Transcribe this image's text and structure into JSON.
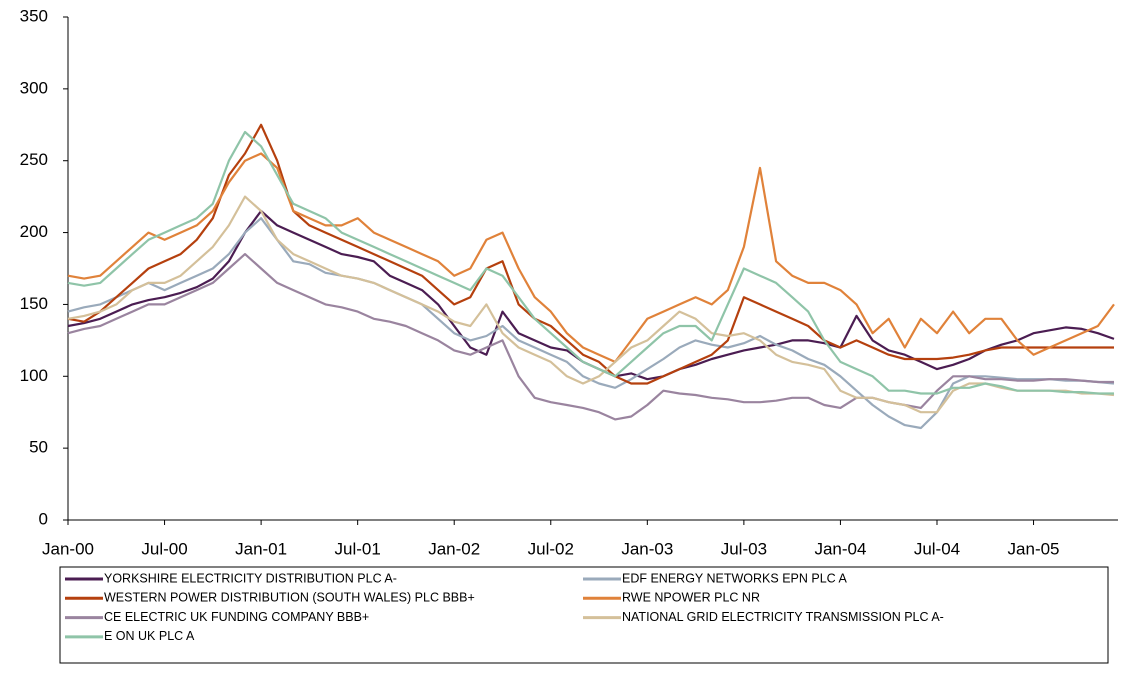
{
  "chart_data": {
    "type": "line",
    "categories": [
      "Jan-00",
      null,
      null,
      null,
      null,
      null,
      "Jul-00",
      null,
      null,
      null,
      null,
      null,
      "Jan-01",
      null,
      null,
      null,
      null,
      null,
      "Jul-01",
      null,
      null,
      null,
      null,
      null,
      "Jan-02",
      null,
      null,
      null,
      null,
      null,
      "Jul-02",
      null,
      null,
      null,
      null,
      null,
      "Jan-03",
      null,
      null,
      null,
      null,
      null,
      "Jul-03",
      null,
      null,
      null,
      null,
      null,
      "Jan-04",
      null,
      null,
      null,
      null,
      null,
      "Jul-04",
      null,
      null,
      null,
      null,
      null,
      "Jan-05",
      null,
      null,
      null,
      null,
      null
    ],
    "ylim": [
      0,
      350
    ],
    "yticks": [
      0,
      50,
      100,
      150,
      200,
      250,
      300,
      350
    ],
    "grid": false,
    "legend": "bottom",
    "series": [
      {
        "name": "YORKSHIRE ELECTRICITY  DISTRIBUTION PLC A-",
        "color": "#4b1d52",
        "values": [
          135,
          137,
          140,
          145,
          150,
          153,
          155,
          158,
          162,
          168,
          180,
          200,
          215,
          205,
          200,
          195,
          190,
          185,
          183,
          180,
          170,
          165,
          160,
          150,
          135,
          120,
          115,
          145,
          130,
          125,
          120,
          118,
          110,
          105,
          100,
          102,
          98,
          100,
          105,
          108,
          112,
          115,
          118,
          120,
          122,
          125,
          125,
          123,
          120,
          142,
          125,
          118,
          115,
          110,
          105,
          108,
          112,
          118,
          122,
          125,
          130,
          132,
          134,
          133,
          130,
          126
        ]
      },
      {
        "name": "EDF ENERGY NETWORKS  EPN PLC A",
        "color": "#9aaabb",
        "values": [
          145,
          148,
          150,
          155,
          160,
          165,
          160,
          165,
          170,
          175,
          185,
          200,
          210,
          195,
          180,
          178,
          172,
          170,
          168,
          165,
          160,
          155,
          150,
          140,
          130,
          125,
          128,
          135,
          125,
          120,
          115,
          110,
          100,
          95,
          92,
          98,
          105,
          112,
          120,
          125,
          122,
          120,
          123,
          128,
          122,
          118,
          112,
          108,
          100,
          90,
          80,
          72,
          66,
          64,
          75,
          95,
          100,
          100,
          99,
          98,
          98,
          98,
          97,
          97,
          96,
          95
        ]
      },
      {
        "name": "WESTERN POWER DISTRIBUTION  (SOUTH WALES) PLC BBB+",
        "color": "#b5400e",
        "values": [
          140,
          138,
          145,
          155,
          165,
          175,
          180,
          185,
          195,
          210,
          240,
          255,
          275,
          250,
          215,
          205,
          200,
          195,
          190,
          185,
          180,
          175,
          170,
          160,
          150,
          155,
          175,
          180,
          150,
          140,
          135,
          125,
          115,
          110,
          100,
          95,
          95,
          100,
          105,
          110,
          115,
          125,
          155,
          150,
          145,
          140,
          135,
          125,
          120,
          125,
          120,
          115,
          112,
          112,
          112,
          113,
          115,
          118,
          120,
          120,
          120,
          120,
          120,
          120,
          120,
          120
        ]
      },
      {
        "name": "RWE NPOWER PLC NR",
        "color": "#e0823a",
        "values": [
          170,
          168,
          170,
          180,
          190,
          200,
          195,
          200,
          205,
          215,
          235,
          250,
          255,
          245,
          215,
          210,
          205,
          205,
          210,
          200,
          195,
          190,
          185,
          180,
          170,
          175,
          195,
          200,
          175,
          155,
          145,
          130,
          120,
          115,
          110,
          125,
          140,
          145,
          150,
          155,
          150,
          160,
          190,
          245,
          180,
          170,
          165,
          165,
          160,
          150,
          130,
          140,
          120,
          140,
          130,
          145,
          130,
          140,
          140,
          125,
          115,
          120,
          125,
          130,
          135,
          150
        ]
      },
      {
        "name": "CE ELECTRIC  UK FUNDING COMPANY BBB+",
        "color": "#9a849f",
        "values": [
          130,
          133,
          135,
          140,
          145,
          150,
          150,
          155,
          160,
          165,
          175,
          185,
          175,
          165,
          160,
          155,
          150,
          148,
          145,
          140,
          138,
          135,
          130,
          125,
          118,
          115,
          120,
          125,
          100,
          85,
          82,
          80,
          78,
          75,
          70,
          72,
          80,
          90,
          88,
          87,
          85,
          84,
          82,
          82,
          83,
          85,
          85,
          80,
          78,
          85,
          85,
          82,
          80,
          78,
          90,
          100,
          100,
          98,
          98,
          97,
          97,
          98,
          98,
          97,
          96,
          96
        ]
      },
      {
        "name": "NATIONAL GRID ELECTRICITY  TRANSMISSION PLC A-",
        "color": "#d4c09a",
        "values": [
          140,
          142,
          145,
          150,
          160,
          165,
          165,
          170,
          180,
          190,
          205,
          225,
          215,
          195,
          185,
          180,
          175,
          170,
          168,
          165,
          160,
          155,
          150,
          145,
          138,
          135,
          150,
          130,
          120,
          115,
          110,
          100,
          95,
          100,
          110,
          120,
          125,
          135,
          145,
          140,
          130,
          128,
          130,
          125,
          115,
          110,
          108,
          105,
          90,
          85,
          85,
          82,
          80,
          75,
          75,
          90,
          95,
          95,
          92,
          90,
          90,
          90,
          90,
          88,
          88,
          87
        ]
      },
      {
        "name": "E ON UK PLC A",
        "color": "#8fc4a8",
        "values": [
          165,
          163,
          165,
          175,
          185,
          195,
          200,
          205,
          210,
          220,
          250,
          270,
          260,
          240,
          220,
          215,
          210,
          200,
          195,
          190,
          185,
          180,
          175,
          170,
          165,
          160,
          175,
          170,
          155,
          140,
          130,
          120,
          110,
          105,
          100,
          110,
          120,
          130,
          135,
          135,
          125,
          150,
          175,
          170,
          165,
          155,
          145,
          125,
          110,
          105,
          100,
          90,
          90,
          88,
          88,
          92,
          92,
          95,
          93,
          90,
          90,
          90,
          89,
          89,
          88,
          88
        ]
      }
    ]
  }
}
